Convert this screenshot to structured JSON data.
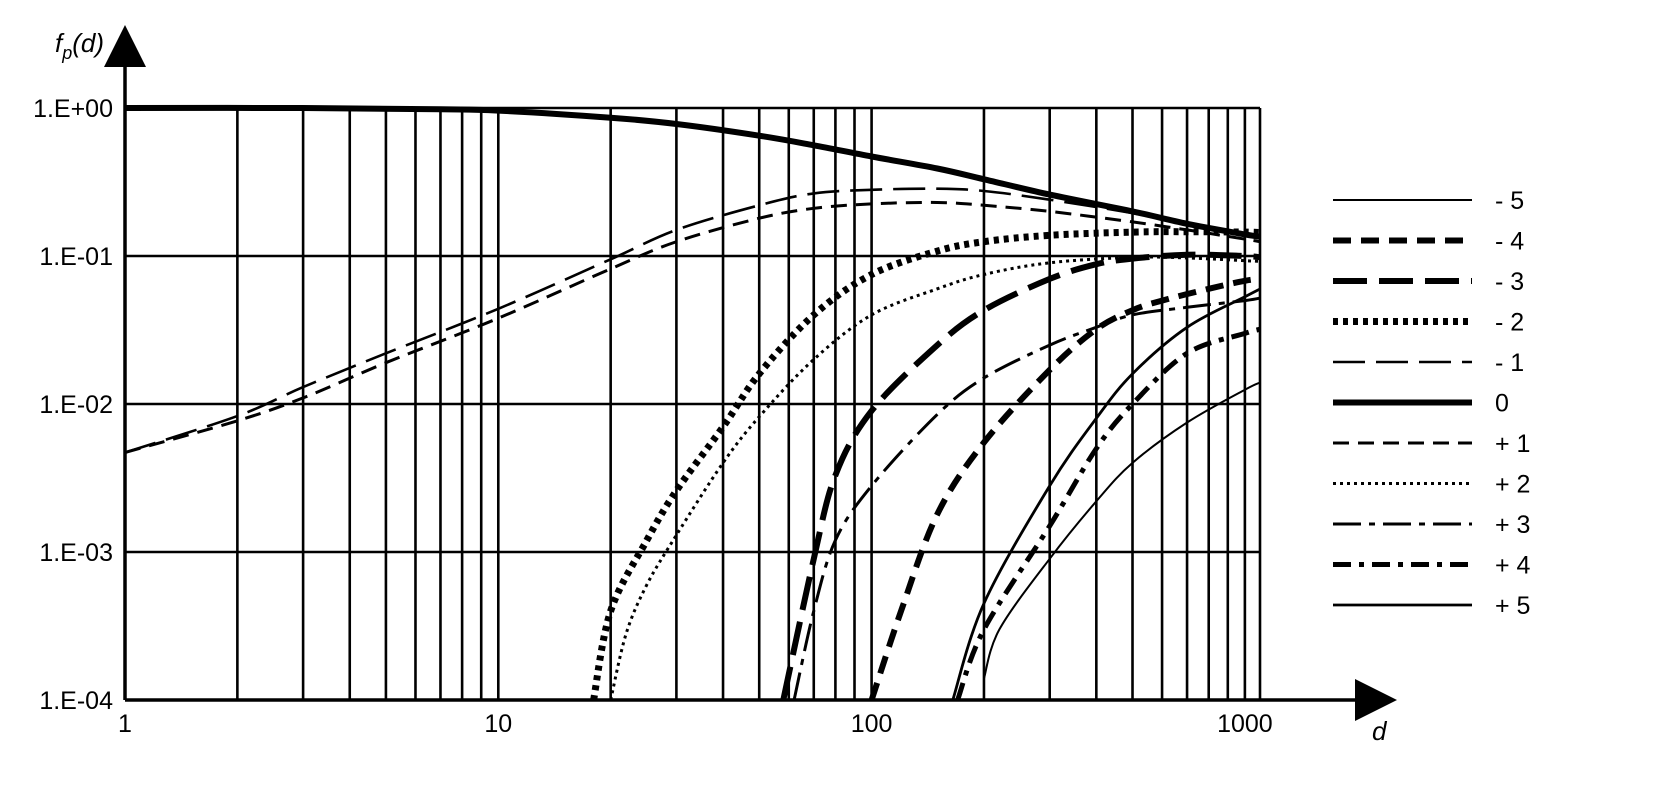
{
  "chart_data": {
    "type": "line",
    "xscale": "log",
    "yscale": "log",
    "xlim": [
      1,
      1000
    ],
    "ylim": [
      0.0001,
      1
    ],
    "xlabel": "d",
    "ylabel_parts": {
      "f": "f",
      "sub": "p",
      "arg": "(d)"
    },
    "xticks": [
      {
        "value": 1,
        "label": "1"
      },
      {
        "value": 10,
        "label": "10"
      },
      {
        "value": 100,
        "label": "100"
      },
      {
        "value": 1000,
        "label": "1000"
      }
    ],
    "yticks": [
      {
        "value": 1,
        "label": "1.E+00"
      },
      {
        "value": 0.1,
        "label": "1.E-01"
      },
      {
        "value": 0.01,
        "label": "1.E-02"
      },
      {
        "value": 0.001,
        "label": "1.E-03"
      },
      {
        "value": 0.0001,
        "label": "1.E-04"
      }
    ],
    "grid": {
      "vertical_minor": true,
      "horizontal_major": true
    },
    "legend_position": "right",
    "series": [
      {
        "name": "- 5",
        "style": "thin-solid",
        "points": [
          [
            200,
            0.00014
          ],
          [
            220,
            0.0003
          ],
          [
            300,
            0.0009
          ],
          [
            400,
            0.0022
          ],
          [
            500,
            0.004
          ],
          [
            700,
            0.0075
          ],
          [
            1000,
            0.0125
          ],
          [
            1100,
            0.014
          ]
        ]
      },
      {
        "name": "- 4",
        "style": "thick-dash",
        "points": [
          [
            100,
            0.0001
          ],
          [
            120,
            0.0004
          ],
          [
            150,
            0.0018
          ],
          [
            200,
            0.0055
          ],
          [
            300,
            0.017
          ],
          [
            400,
            0.032
          ],
          [
            500,
            0.043
          ],
          [
            600,
            0.05
          ],
          [
            800,
            0.06
          ],
          [
            1000,
            0.068
          ],
          [
            1100,
            0.07
          ]
        ]
      },
      {
        "name": "- 3",
        "style": "thick-longdash",
        "points": [
          [
            58,
            0.0001
          ],
          [
            70,
            0.0009
          ],
          [
            80,
            0.0033
          ],
          [
            100,
            0.009
          ],
          [
            150,
            0.025
          ],
          [
            200,
            0.043
          ],
          [
            300,
            0.07
          ],
          [
            400,
            0.088
          ],
          [
            500,
            0.096
          ],
          [
            700,
            0.102
          ],
          [
            1000,
            0.1
          ],
          [
            1100,
            0.098
          ]
        ]
      },
      {
        "name": "- 2",
        "style": "thick-dot",
        "points": [
          [
            18,
            0.0001
          ],
          [
            20,
            0.0004
          ],
          [
            25,
            0.0012
          ],
          [
            30,
            0.0026
          ],
          [
            40,
            0.007
          ],
          [
            50,
            0.016
          ],
          [
            70,
            0.04
          ],
          [
            100,
            0.075
          ],
          [
            150,
            0.108
          ],
          [
            200,
            0.125
          ],
          [
            300,
            0.138
          ],
          [
            500,
            0.145
          ],
          [
            700,
            0.146
          ],
          [
            1000,
            0.145
          ],
          [
            1100,
            0.144
          ]
        ]
      },
      {
        "name": "- 1",
        "style": "thin-longdash",
        "points": [
          [
            1,
            0.0047
          ],
          [
            2,
            0.0083
          ],
          [
            3,
            0.013
          ],
          [
            5,
            0.022
          ],
          [
            10,
            0.044
          ],
          [
            20,
            0.095
          ],
          [
            30,
            0.15
          ],
          [
            50,
            0.22
          ],
          [
            70,
            0.265
          ],
          [
            100,
            0.28
          ],
          [
            150,
            0.285
          ],
          [
            200,
            0.275
          ],
          [
            300,
            0.24
          ],
          [
            500,
            0.195
          ],
          [
            700,
            0.165
          ],
          [
            1000,
            0.14
          ],
          [
            1100,
            0.135
          ]
        ]
      },
      {
        "name": "0",
        "style": "thick-solid",
        "points": [
          [
            1,
            1.0
          ],
          [
            3,
            1.0
          ],
          [
            7,
            0.98
          ],
          [
            10,
            0.96
          ],
          [
            20,
            0.86
          ],
          [
            30,
            0.78
          ],
          [
            50,
            0.65
          ],
          [
            70,
            0.56
          ],
          [
            100,
            0.47
          ],
          [
            150,
            0.39
          ],
          [
            200,
            0.33
          ],
          [
            300,
            0.26
          ],
          [
            500,
            0.2
          ],
          [
            700,
            0.165
          ],
          [
            1000,
            0.14
          ],
          [
            1100,
            0.135
          ]
        ]
      },
      {
        "name": "+ 1",
        "style": "thin-dash",
        "points": [
          [
            1,
            0.0047
          ],
          [
            2,
            0.0077
          ],
          [
            3,
            0.011
          ],
          [
            5,
            0.019
          ],
          [
            10,
            0.038
          ],
          [
            20,
            0.082
          ],
          [
            30,
            0.125
          ],
          [
            50,
            0.18
          ],
          [
            70,
            0.21
          ],
          [
            100,
            0.225
          ],
          [
            150,
            0.23
          ],
          [
            200,
            0.22
          ],
          [
            300,
            0.2
          ],
          [
            500,
            0.17
          ],
          [
            700,
            0.15
          ],
          [
            1000,
            0.13
          ],
          [
            1100,
            0.125
          ]
        ]
      },
      {
        "name": "+ 2",
        "style": "thin-dot",
        "points": [
          [
            20,
            0.0001
          ],
          [
            22,
            0.00028
          ],
          [
            25,
            0.0006
          ],
          [
            30,
            0.0013
          ],
          [
            40,
            0.004
          ],
          [
            50,
            0.0082
          ],
          [
            70,
            0.02
          ],
          [
            100,
            0.04
          ],
          [
            150,
            0.06
          ],
          [
            200,
            0.075
          ],
          [
            300,
            0.09
          ],
          [
            500,
            0.098
          ],
          [
            700,
            0.097
          ],
          [
            1000,
            0.093
          ],
          [
            1100,
            0.092
          ]
        ]
      },
      {
        "name": "+ 3",
        "style": "thin-dashdot",
        "points": [
          [
            62,
            0.0001
          ],
          [
            70,
            0.0004
          ],
          [
            80,
            0.0012
          ],
          [
            100,
            0.0028
          ],
          [
            150,
            0.0085
          ],
          [
            200,
            0.015
          ],
          [
            300,
            0.025
          ],
          [
            400,
            0.033
          ],
          [
            500,
            0.04
          ],
          [
            700,
            0.045
          ],
          [
            1000,
            0.05
          ],
          [
            1100,
            0.052
          ]
        ]
      },
      {
        "name": "+ 4",
        "style": "thick-dashdot",
        "points": [
          [
            170,
            0.0001
          ],
          [
            200,
            0.0003
          ],
          [
            300,
            0.0015
          ],
          [
            400,
            0.005
          ],
          [
            500,
            0.01
          ],
          [
            700,
            0.022
          ],
          [
            1000,
            0.03
          ],
          [
            1100,
            0.032
          ]
        ]
      },
      {
        "name": "+ 5",
        "style": "thin-solid-2",
        "points": [
          [
            165,
            0.0001
          ],
          [
            200,
            0.00045
          ],
          [
            300,
            0.0028
          ],
          [
            400,
            0.008
          ],
          [
            500,
            0.016
          ],
          [
            700,
            0.033
          ],
          [
            1000,
            0.053
          ],
          [
            1100,
            0.06
          ]
        ]
      }
    ]
  }
}
